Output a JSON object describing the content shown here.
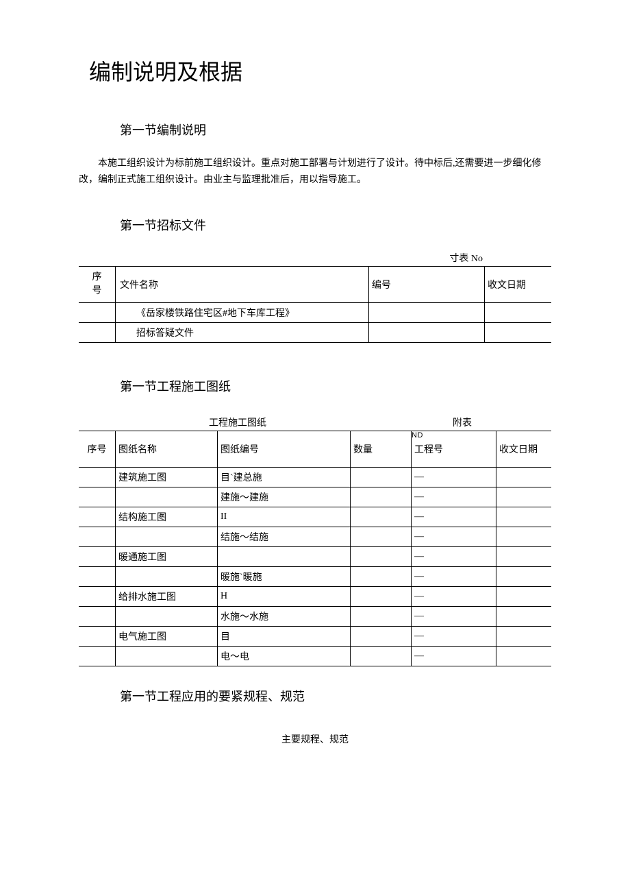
{
  "title": "编制说明及根据",
  "section1": {
    "heading": "第一节编制说明",
    "para": "本施工组织设计为标前施工组织设计。重点对施工部署与计划进行了设计。待中标后,还需要进一步细化修改，编制正式施工组织设计。由业主与监理批准后，用以指导施工。"
  },
  "section2": {
    "heading": "第一节招标文件",
    "table_note": "寸表 No",
    "table": {
      "headers": {
        "seq1": "序",
        "seq2": "号",
        "name": "文件名称",
        "code": "编号",
        "date": "收文日期"
      },
      "rows": [
        {
          "name": "《岳家楼铁路住宅区#地下车库工程》",
          "code": "",
          "date": ""
        },
        {
          "name": "招标答疑文件",
          "code": "",
          "date": ""
        }
      ]
    }
  },
  "section3": {
    "heading": "第一节工程施工图纸",
    "title_center": "工程施工图纸",
    "title_right": "附表",
    "nd": "ND",
    "table": {
      "headers": {
        "seq": "序号",
        "name": "图纸名称",
        "code": "图纸编号",
        "qty": "数量",
        "proj": "工程号",
        "date": "收文日期"
      },
      "rows": [
        {
          "name": "建筑施工图",
          "code": "目`建总施",
          "qty": "",
          "proj": "—",
          "date": ""
        },
        {
          "name": "",
          "code": "建施～建施",
          "qty": "",
          "proj": "—",
          "date": ""
        },
        {
          "name": "结构施工图",
          "code": "II",
          "qty": "",
          "proj": "—",
          "date": ""
        },
        {
          "name": "",
          "code": "结施～结施",
          "qty": "",
          "proj": "—",
          "date": ""
        },
        {
          "name": "暖通施工图",
          "code": "",
          "qty": "",
          "proj": "—",
          "date": ""
        },
        {
          "name": "",
          "code": "暖施`暖施",
          "qty": "",
          "proj": "—",
          "date": ""
        },
        {
          "name": "给排水施工图",
          "code": "H",
          "qty": "",
          "proj": "—",
          "date": ""
        },
        {
          "name": "",
          "code": "水施～水施",
          "qty": "",
          "proj": "—",
          "date": ""
        },
        {
          "name": "电气施工图",
          "code": "目",
          "qty": "",
          "proj": "—",
          "date": ""
        },
        {
          "name": "",
          "code": "电～电",
          "qty": "",
          "proj": "—",
          "date": ""
        }
      ]
    }
  },
  "section4": {
    "heading": "第一节工程应用的要紧规程、规范",
    "subtitle": "主要规程、规范"
  }
}
